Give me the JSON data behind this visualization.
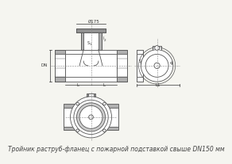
{
  "bg_color": "#f5f5f0",
  "line_color": "#555555",
  "fill_color": "#aaaaaa",
  "hatch_color": "#666666",
  "caption": "Тройник раструб-фланец с пожарной подставкой свыше DN150 мм",
  "caption_fontsize": 5.5,
  "fig_bg": "#f5f5f0"
}
